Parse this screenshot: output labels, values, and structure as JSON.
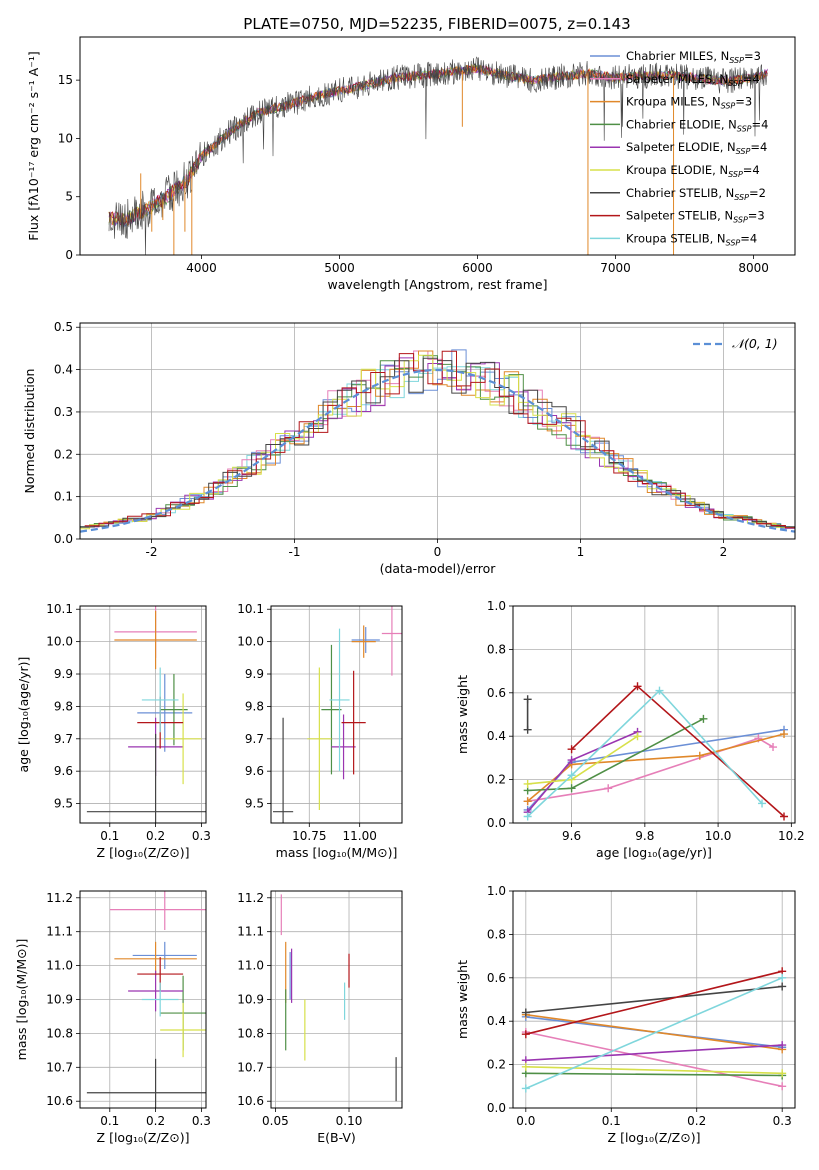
{
  "colors": {
    "Chabrier MILES": "#6b8fd6",
    "Salpeter MILES": "#e67fb8",
    "Kroupa MILES": "#e0882a",
    "Chabrier ELODIE": "#4f8f46",
    "Salpeter ELODIE": "#9a35b0",
    "Kroupa ELODIE": "#d7e04a",
    "Chabrier STELIB": "#444444",
    "Salpeter STELIB": "#b3161a",
    "Kroupa STELIB": "#7fd6dc",
    "normal": "#5b8fd6",
    "grid": "#b0b0b0"
  },
  "chart_data": [
    {
      "type": "line",
      "title": "PLATE=0750, MJD=52235, FIBERID=0075, z=0.143",
      "xlabel": "wavelength [Angstrom, rest frame]",
      "ylabel": "Flux [fλ10⁻¹⁷ erg cm⁻² s⁻¹ A⁻¹]",
      "xlim": [
        3120,
        8300
      ],
      "ylim": [
        0,
        18.7
      ],
      "xticks": [
        4000,
        5000,
        6000,
        7000,
        8000
      ],
      "yticks": [
        0,
        5,
        10,
        15
      ],
      "grid": false,
      "legend_position": "upper right",
      "legend": [
        {
          "name": "Chabrier MILES",
          "nssp": "3"
        },
        {
          "name": "Salpeter MILES",
          "nssp": "4"
        },
        {
          "name": "Kroupa MILES",
          "nssp": "3"
        },
        {
          "name": "Chabrier ELODIE",
          "nssp": "4"
        },
        {
          "name": "Salpeter ELODIE",
          "nssp": "4"
        },
        {
          "name": "Kroupa ELODIE",
          "nssp": "4"
        },
        {
          "name": "Chabrier STELIB",
          "nssp": "2"
        },
        {
          "name": "Salpeter STELIB",
          "nssp": "3"
        },
        {
          "name": "Kroupa STELIB",
          "nssp": "4"
        }
      ],
      "spectrum_envelope": {
        "x": [
          3330,
          3450,
          3600,
          3750,
          3900,
          4000,
          4200,
          4400,
          4600,
          4800,
          5000,
          5200,
          5400,
          5600,
          5800,
          6000,
          6200,
          6400,
          6600,
          6800,
          7000,
          7200,
          7400,
          7600,
          7800,
          8000,
          8100
        ],
        "y": [
          3.2,
          3.0,
          3.9,
          5.0,
          6.5,
          8.5,
          10.5,
          12.2,
          12.8,
          13.5,
          14.1,
          14.6,
          15.2,
          15.4,
          15.7,
          16.0,
          15.4,
          15.0,
          15.3,
          15.6,
          15.2,
          15.4,
          15.4,
          15.2,
          14.9,
          15.2,
          15.6
        ]
      }
    },
    {
      "type": "histogram",
      "xlabel": "(data-model)/error",
      "ylabel": "Normed distribution",
      "xlim": [
        -2.5,
        2.5
      ],
      "ylim": [
        0,
        0.51
      ],
      "xticks": [
        -2,
        -1,
        0,
        1,
        2
      ],
      "yticks": [
        0.0,
        0.1,
        0.2,
        0.3,
        0.4,
        0.5
      ],
      "grid": true,
      "legend": [
        "𝒩(0, 1)"
      ],
      "legend_position": "upper right",
      "normal_curve": {
        "mean": 0,
        "sigma": 1
      }
    },
    {
      "type": "scatter",
      "xlabel": "Z [log₁₀(Z/Z⊙)]",
      "ylabel": "age  [log₁₀(age/yr)]",
      "xlim": [
        0.035,
        0.31
      ],
      "ylim": [
        9.44,
        10.11
      ],
      "xticks": [
        0.1,
        0.2,
        0.3
      ],
      "yticks": [
        9.5,
        9.6,
        9.7,
        9.8,
        9.9,
        10.0,
        10.1
      ],
      "grid": true,
      "points": [
        {
          "model": "Chabrier MILES",
          "x": 0.22,
          "xerr": 0.06,
          "y": 9.78,
          "yerr": 0.12
        },
        {
          "model": "Salpeter MILES",
          "x": 0.2,
          "xerr": 0.09,
          "y": 10.03,
          "yerr": 0.08
        },
        {
          "model": "Kroupa MILES",
          "x": 0.2,
          "xerr": 0.09,
          "y": 10.005,
          "yerr": 0.09
        },
        {
          "model": "Chabrier ELODIE",
          "x": 0.24,
          "xerr": 0.03,
          "y": 9.79,
          "yerr": 0.11
        },
        {
          "model": "Salpeter ELODIE",
          "x": 0.2,
          "xerr": 0.06,
          "y": 9.675,
          "yerr": 0.09
        },
        {
          "model": "Kroupa ELODIE",
          "x": 0.26,
          "xerr": 0.04,
          "y": 9.7,
          "yerr": 0.14
        },
        {
          "model": "Chabrier STELIB",
          "x": 0.2,
          "xerr": 0.15,
          "y": 9.475,
          "yerr": 0.24
        },
        {
          "model": "Salpeter STELIB",
          "x": 0.21,
          "xerr": 0.05,
          "y": 9.75,
          "yerr": 0.08
        },
        {
          "model": "Kroupa STELIB",
          "x": 0.21,
          "xerr": 0.04,
          "y": 9.82,
          "yerr": 0.1
        }
      ]
    },
    {
      "type": "scatter",
      "xlabel": "mass [log₁₀(M/M⊙)]",
      "xlim": [
        10.56,
        11.21
      ],
      "ylim": [
        9.44,
        10.11
      ],
      "xticks": [
        10.75,
        11.0
      ],
      "yticks": [
        9.5,
        9.6,
        9.7,
        9.8,
        9.9,
        10.0,
        10.1
      ],
      "grid": true,
      "points": [
        {
          "model": "Chabrier MILES",
          "x": 11.03,
          "xerr": 0.07,
          "y": 10.005,
          "yerr": 0.04
        },
        {
          "model": "Salpeter MILES",
          "x": 11.16,
          "xerr": 0.05,
          "y": 10.025,
          "yerr": 0.13
        },
        {
          "model": "Kroupa MILES",
          "x": 11.02,
          "xerr": 0.06,
          "y": 10.0,
          "yerr": 0.05
        },
        {
          "model": "Chabrier ELODIE",
          "x": 10.86,
          "xerr": 0.05,
          "y": 9.79,
          "yerr": 0.2
        },
        {
          "model": "Salpeter ELODIE",
          "x": 10.92,
          "xerr": 0.06,
          "y": 9.675,
          "yerr": 0.1
        },
        {
          "model": "Kroupa ELODIE",
          "x": 10.8,
          "xerr": 0.06,
          "y": 9.7,
          "yerr": 0.22
        },
        {
          "model": "Chabrier STELIB",
          "x": 10.62,
          "xerr": 0.05,
          "y": 9.475,
          "yerr": 0.29
        },
        {
          "model": "Salpeter STELIB",
          "x": 10.97,
          "xerr": 0.06,
          "y": 9.75,
          "yerr": 0.16
        },
        {
          "model": "Kroupa STELIB",
          "x": 10.9,
          "xerr": 0.05,
          "y": 9.82,
          "yerr": 0.22
        }
      ]
    },
    {
      "type": "line",
      "xlabel": "age  [log₁₀(age/yr)]",
      "ylabel": "mass weight",
      "xlim": [
        9.44,
        10.21
      ],
      "ylim": [
        0,
        1.0
      ],
      "xticks": [
        9.6,
        9.8,
        10.0,
        10.2
      ],
      "yticks": [
        0.0,
        0.2,
        0.4,
        0.6,
        0.8,
        1.0
      ],
      "grid": true,
      "series": [
        {
          "model": "Chabrier MILES",
          "x": [
            9.48,
            9.6,
            10.18
          ],
          "y": [
            0.06,
            0.28,
            0.43
          ]
        },
        {
          "model": "Salpeter MILES",
          "x": [
            9.48,
            9.7,
            10.11,
            10.15
          ],
          "y": [
            0.1,
            0.16,
            0.39,
            0.35
          ]
        },
        {
          "model": "Kroupa MILES",
          "x": [
            9.48,
            9.6,
            9.95,
            10.18
          ],
          "y": [
            0.1,
            0.27,
            0.31,
            0.41
          ]
        },
        {
          "model": "Chabrier ELODIE",
          "x": [
            9.48,
            9.6,
            9.96
          ],
          "y": [
            0.15,
            0.16,
            0.48
          ]
        },
        {
          "model": "Salpeter ELODIE",
          "x": [
            9.48,
            9.6,
            9.78
          ],
          "y": [
            0.05,
            0.29,
            0.42
          ]
        },
        {
          "model": "Kroupa ELODIE",
          "x": [
            9.48,
            9.6,
            9.78
          ],
          "y": [
            0.18,
            0.2,
            0.4
          ]
        },
        {
          "model": "Chabrier STELIB",
          "x": [
            9.48,
            9.48
          ],
          "y": [
            0.43,
            0.57
          ]
        },
        {
          "model": "Salpeter STELIB",
          "x": [
            9.6,
            9.78,
            10.18
          ],
          "y": [
            0.34,
            0.63,
            0.03
          ]
        },
        {
          "model": "Kroupa STELIB",
          "x": [
            9.48,
            9.6,
            9.84,
            10.12
          ],
          "y": [
            0.03,
            0.22,
            0.61,
            0.09
          ]
        }
      ]
    },
    {
      "type": "scatter",
      "xlabel": "Z [log₁₀(Z/Z⊙)]",
      "ylabel": "mass [log₁₀(M/M⊙)]",
      "xlim": [
        0.035,
        0.31
      ],
      "ylim": [
        10.58,
        11.22
      ],
      "xticks": [
        0.1,
        0.2,
        0.3
      ],
      "yticks": [
        10.6,
        10.7,
        10.8,
        10.9,
        11.0,
        11.1,
        11.2
      ],
      "grid": true,
      "points": [
        {
          "model": "Chabrier MILES",
          "x": 0.22,
          "xerr": 0.07,
          "y": 11.03,
          "yerr": 0.04
        },
        {
          "model": "Salpeter MILES",
          "x": 0.22,
          "xerr": 0.12,
          "y": 11.165,
          "yerr": 0.06
        },
        {
          "model": "Kroupa MILES",
          "x": 0.2,
          "xerr": 0.09,
          "y": 11.02,
          "yerr": 0.05
        },
        {
          "model": "Chabrier ELODIE",
          "x": 0.26,
          "xerr": 0.05,
          "y": 10.86,
          "yerr": 0.11
        },
        {
          "model": "Salpeter ELODIE",
          "x": 0.2,
          "xerr": 0.06,
          "y": 10.925,
          "yerr": 0.06
        },
        {
          "model": "Kroupa ELODIE",
          "x": 0.26,
          "xerr": 0.05,
          "y": 10.81,
          "yerr": 0.08
        },
        {
          "model": "Chabrier STELIB",
          "x": 0.2,
          "xerr": 0.15,
          "y": 10.625,
          "yerr": 0.1
        },
        {
          "model": "Salpeter STELIB",
          "x": 0.21,
          "xerr": 0.05,
          "y": 10.975,
          "yerr": 0.05
        },
        {
          "model": "Kroupa STELIB",
          "x": 0.21,
          "xerr": 0.04,
          "y": 10.9,
          "yerr": 0.05
        }
      ]
    },
    {
      "type": "scatter",
      "xlabel": "E(B-V)",
      "xlim": [
        0.047,
        0.136
      ],
      "ylim": [
        10.58,
        11.22
      ],
      "xticks": [
        0.05,
        0.1
      ],
      "yticks": [
        10.6,
        10.7,
        10.8,
        10.9,
        11.0,
        11.1,
        11.2
      ],
      "grid": true,
      "points": [
        {
          "model": "Chabrier MILES",
          "x": 0.06,
          "y": 10.97,
          "yerr": 0.07
        },
        {
          "model": "Salpeter MILES",
          "x": 0.054,
          "y": 11.15,
          "yerr": 0.06
        },
        {
          "model": "Kroupa MILES",
          "x": 0.057,
          "y": 10.98,
          "yerr": 0.09
        },
        {
          "model": "Chabrier ELODIE",
          "x": 0.057,
          "y": 10.84,
          "yerr": 0.09
        },
        {
          "model": "Salpeter ELODIE",
          "x": 0.061,
          "y": 10.97,
          "yerr": 0.08
        },
        {
          "model": "Kroupa ELODIE",
          "x": 0.07,
          "y": 10.81,
          "yerr": 0.09
        },
        {
          "model": "Chabrier STELIB",
          "x": 0.132,
          "y": 10.665,
          "yerr": 0.065
        },
        {
          "model": "Salpeter STELIB",
          "x": 0.1,
          "y": 10.985,
          "yerr": 0.05
        },
        {
          "model": "Kroupa STELIB",
          "x": 0.097,
          "y": 10.895,
          "yerr": 0.055
        }
      ]
    },
    {
      "type": "line",
      "xlabel": "Z [log₁₀(Z/Z⊙)]",
      "ylabel": "mass weight",
      "xlim": [
        -0.015,
        0.315
      ],
      "ylim": [
        0,
        1.0
      ],
      "xticks": [
        0.0,
        0.1,
        0.2,
        0.3
      ],
      "yticks": [
        0.0,
        0.2,
        0.4,
        0.6,
        0.8,
        1.0
      ],
      "grid": true,
      "series": [
        {
          "model": "Chabrier MILES",
          "x": [
            0.0,
            0.3
          ],
          "y": [
            0.42,
            0.28
          ]
        },
        {
          "model": "Salpeter MILES",
          "x": [
            0.0,
            0.3
          ],
          "y": [
            0.35,
            0.1
          ]
        },
        {
          "model": "Kroupa MILES",
          "x": [
            0.0,
            0.3
          ],
          "y": [
            0.43,
            0.27
          ]
        },
        {
          "model": "Chabrier ELODIE",
          "x": [
            0.0,
            0.3
          ],
          "y": [
            0.16,
            0.15
          ]
        },
        {
          "model": "Salpeter ELODIE",
          "x": [
            0.0,
            0.3
          ],
          "y": [
            0.22,
            0.29
          ]
        },
        {
          "model": "Kroupa ELODIE",
          "x": [
            0.0,
            0.3
          ],
          "y": [
            0.19,
            0.16
          ]
        },
        {
          "model": "Chabrier STELIB",
          "x": [
            0.0,
            0.3
          ],
          "y": [
            0.44,
            0.56
          ]
        },
        {
          "model": "Salpeter STELIB",
          "x": [
            0.0,
            0.3
          ],
          "y": [
            0.34,
            0.63
          ]
        },
        {
          "model": "Kroupa STELIB",
          "x": [
            0.0,
            0.3
          ],
          "y": [
            0.09,
            0.6
          ]
        }
      ]
    }
  ]
}
